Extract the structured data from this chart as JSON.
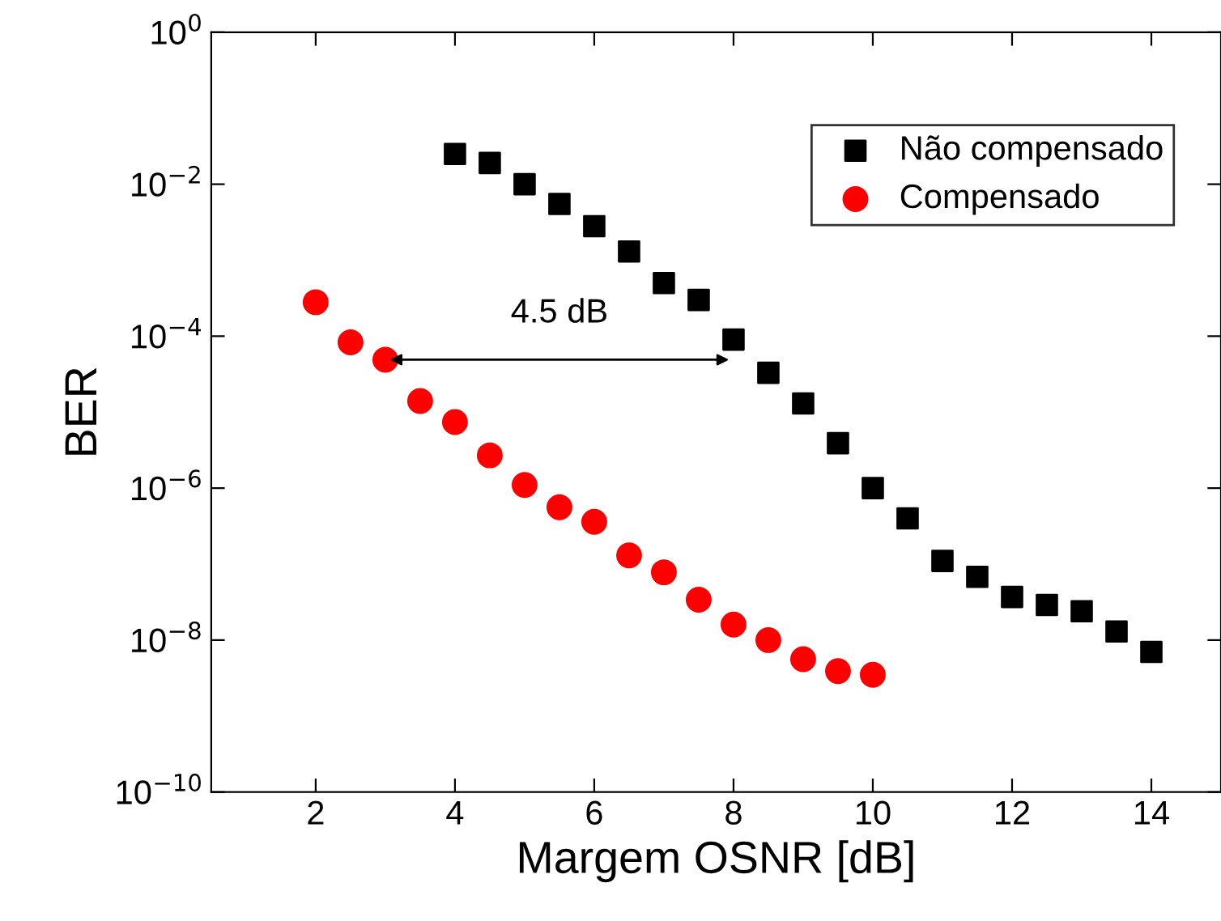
{
  "chart_data": {
    "type": "scatter",
    "xlabel": "Margem OSNR [dB]",
    "ylabel": "BER",
    "xlim": [
      0.5,
      15
    ],
    "xticks": [
      2,
      4,
      6,
      8,
      10,
      12,
      14
    ],
    "ylim": [
      1e-10,
      1
    ],
    "log": "y",
    "yticks": [
      {
        "value": 1e-10,
        "label": "10$^{−10}$"
      },
      {
        "value": 1e-08,
        "label": "10$^{−8}$"
      },
      {
        "value": 1e-06,
        "label": "10$^{−6}$"
      },
      {
        "value": 0.0001,
        "label": "10$^{−4}$"
      },
      {
        "value": 0.01,
        "label": "10$^{−2}$"
      },
      {
        "value": 1,
        "label": "10$^{0}$"
      }
    ],
    "legend": "top right",
    "grid": false,
    "annotations": [
      "4.5 dB"
    ],
    "series": [
      {
        "name": "Não compensado",
        "color": "#000000",
        "marker": "square",
        "x": [
          4,
          4.5,
          5,
          5.5,
          6,
          6.5,
          7,
          7.5,
          8,
          8.5,
          9,
          9.5,
          10,
          10.5,
          11,
          11.5,
          12,
          12.5,
          13,
          13.5,
          14
        ],
        "values": [
          0.025,
          0.019,
          0.01,
          0.0055,
          0.0028,
          0.0013,
          0.0005,
          0.0003,
          9e-05,
          3.3e-05,
          1.3e-05,
          3.9e-06,
          1e-06,
          4e-07,
          1.1e-07,
          6.8e-08,
          3.7e-08,
          2.9e-08,
          2.4e-08,
          1.3e-08,
          7e-09
        ]
      },
      {
        "name": "Compensado",
        "color": "#ff0000",
        "marker": "circle",
        "x": [
          2,
          2.5,
          3,
          3.5,
          4,
          4.5,
          5,
          5.5,
          6,
          6.5,
          7,
          7.5,
          8,
          8.5,
          9,
          9.5,
          10
        ],
        "values": [
          0.00028,
          8.3e-05,
          4.9e-05,
          1.4e-05,
          7.4e-06,
          2.7e-06,
          1.1e-06,
          5.6e-07,
          3.6e-07,
          1.3e-07,
          7.8e-08,
          3.4e-08,
          1.6e-08,
          1e-08,
          5.6e-09,
          3.9e-09,
          3.5e-09
        ]
      }
    ]
  }
}
